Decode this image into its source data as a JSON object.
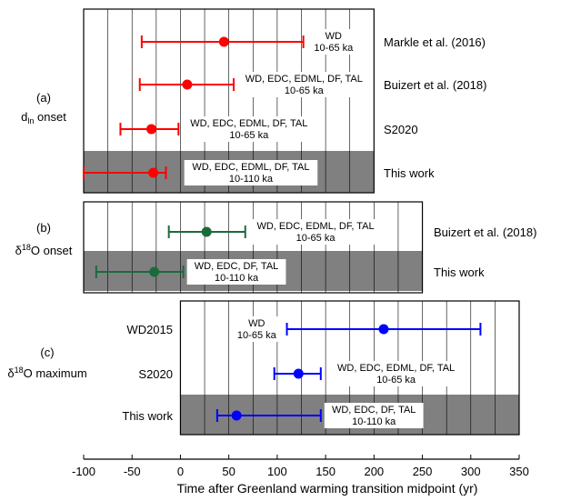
{
  "chart_data": {
    "type": "errorbar",
    "xlabel": "Time after Greenland warming transition midpoint (yr)",
    "xlim": [
      -100,
      350
    ],
    "xticks": [
      -100,
      -50,
      0,
      50,
      100,
      150,
      200,
      250,
      300,
      350
    ],
    "grid_step": 25,
    "colors": {
      "red": "#ff0000",
      "green": "#1a6b3c",
      "blue": "#0000ff",
      "shade": "#808080"
    },
    "panels": [
      {
        "id": "a",
        "tag": "(a)",
        "label_main": "d",
        "label_sub": "ln",
        "label_rest": " onset",
        "color": "red",
        "xrange": [
          -100,
          200
        ],
        "series_label_side": "right",
        "rows": [
          {
            "name": "Markle et al. (2016)",
            "center": 45,
            "low": -40,
            "high": 127,
            "info": [
              "WD",
              "10-65 ka"
            ],
            "info_side": "right",
            "shaded": false
          },
          {
            "name": "Buizert et al. (2018)",
            "center": 7,
            "low": -42,
            "high": 55,
            "info": [
              "WD, EDC, EDML, DF, TAL",
              "10-65 ka"
            ],
            "info_side": "right",
            "shaded": false
          },
          {
            "name": "S2020",
            "center": -30,
            "low": -62,
            "high": -2,
            "info": [
              "WD, EDC, EDML, DF, TAL",
              "10-65 ka"
            ],
            "info_side": "right",
            "shaded": false
          },
          {
            "name": "This work",
            "center": -28,
            "low": -100,
            "high": -15,
            "info": [
              "WD, EDC, EDML, DF, TAL",
              "10-110 ka"
            ],
            "info_side": "right",
            "shaded": true
          }
        ]
      },
      {
        "id": "b",
        "tag": "(b)",
        "label_main": "δ",
        "label_sup": "18",
        "label_rest": "O onset",
        "color": "green",
        "xrange": [
          -100,
          250
        ],
        "series_label_side": "right",
        "rows": [
          {
            "name": "Buizert et al. (2018)",
            "center": 27,
            "low": -12,
            "high": 67,
            "info": [
              "WD, EDC, EDML, DF, TAL",
              "10-65 ka"
            ],
            "info_side": "right",
            "shaded": false
          },
          {
            "name": "This work",
            "center": -27,
            "low": -87,
            "high": 3,
            "info": [
              "WD, EDC, DF, TAL",
              "10-110 ka"
            ],
            "info_side": "right",
            "shaded": true
          }
        ]
      },
      {
        "id": "c",
        "tag": "(c)",
        "label_main": "δ",
        "label_sup": "18",
        "label_rest": "O maximum",
        "color": "blue",
        "xrange": [
          0,
          350
        ],
        "series_label_side": "left",
        "rows": [
          {
            "name": "WD2015",
            "center": 210,
            "low": 110,
            "high": 310,
            "info": [
              "WD",
              "10-65 ka"
            ],
            "info_side": "left",
            "shaded": false
          },
          {
            "name": "S2020",
            "center": 122,
            "low": 97,
            "high": 145,
            "info": [
              "WD, EDC, EDML, DF, TAL",
              "10-65 ka"
            ],
            "info_side": "right",
            "shaded": false
          },
          {
            "name": "This work",
            "center": 58,
            "low": 38,
            "high": 145,
            "info": [
              "WD, EDC, DF, TAL",
              "10-110 ka"
            ],
            "info_side": "right",
            "shaded": true
          }
        ]
      }
    ]
  }
}
